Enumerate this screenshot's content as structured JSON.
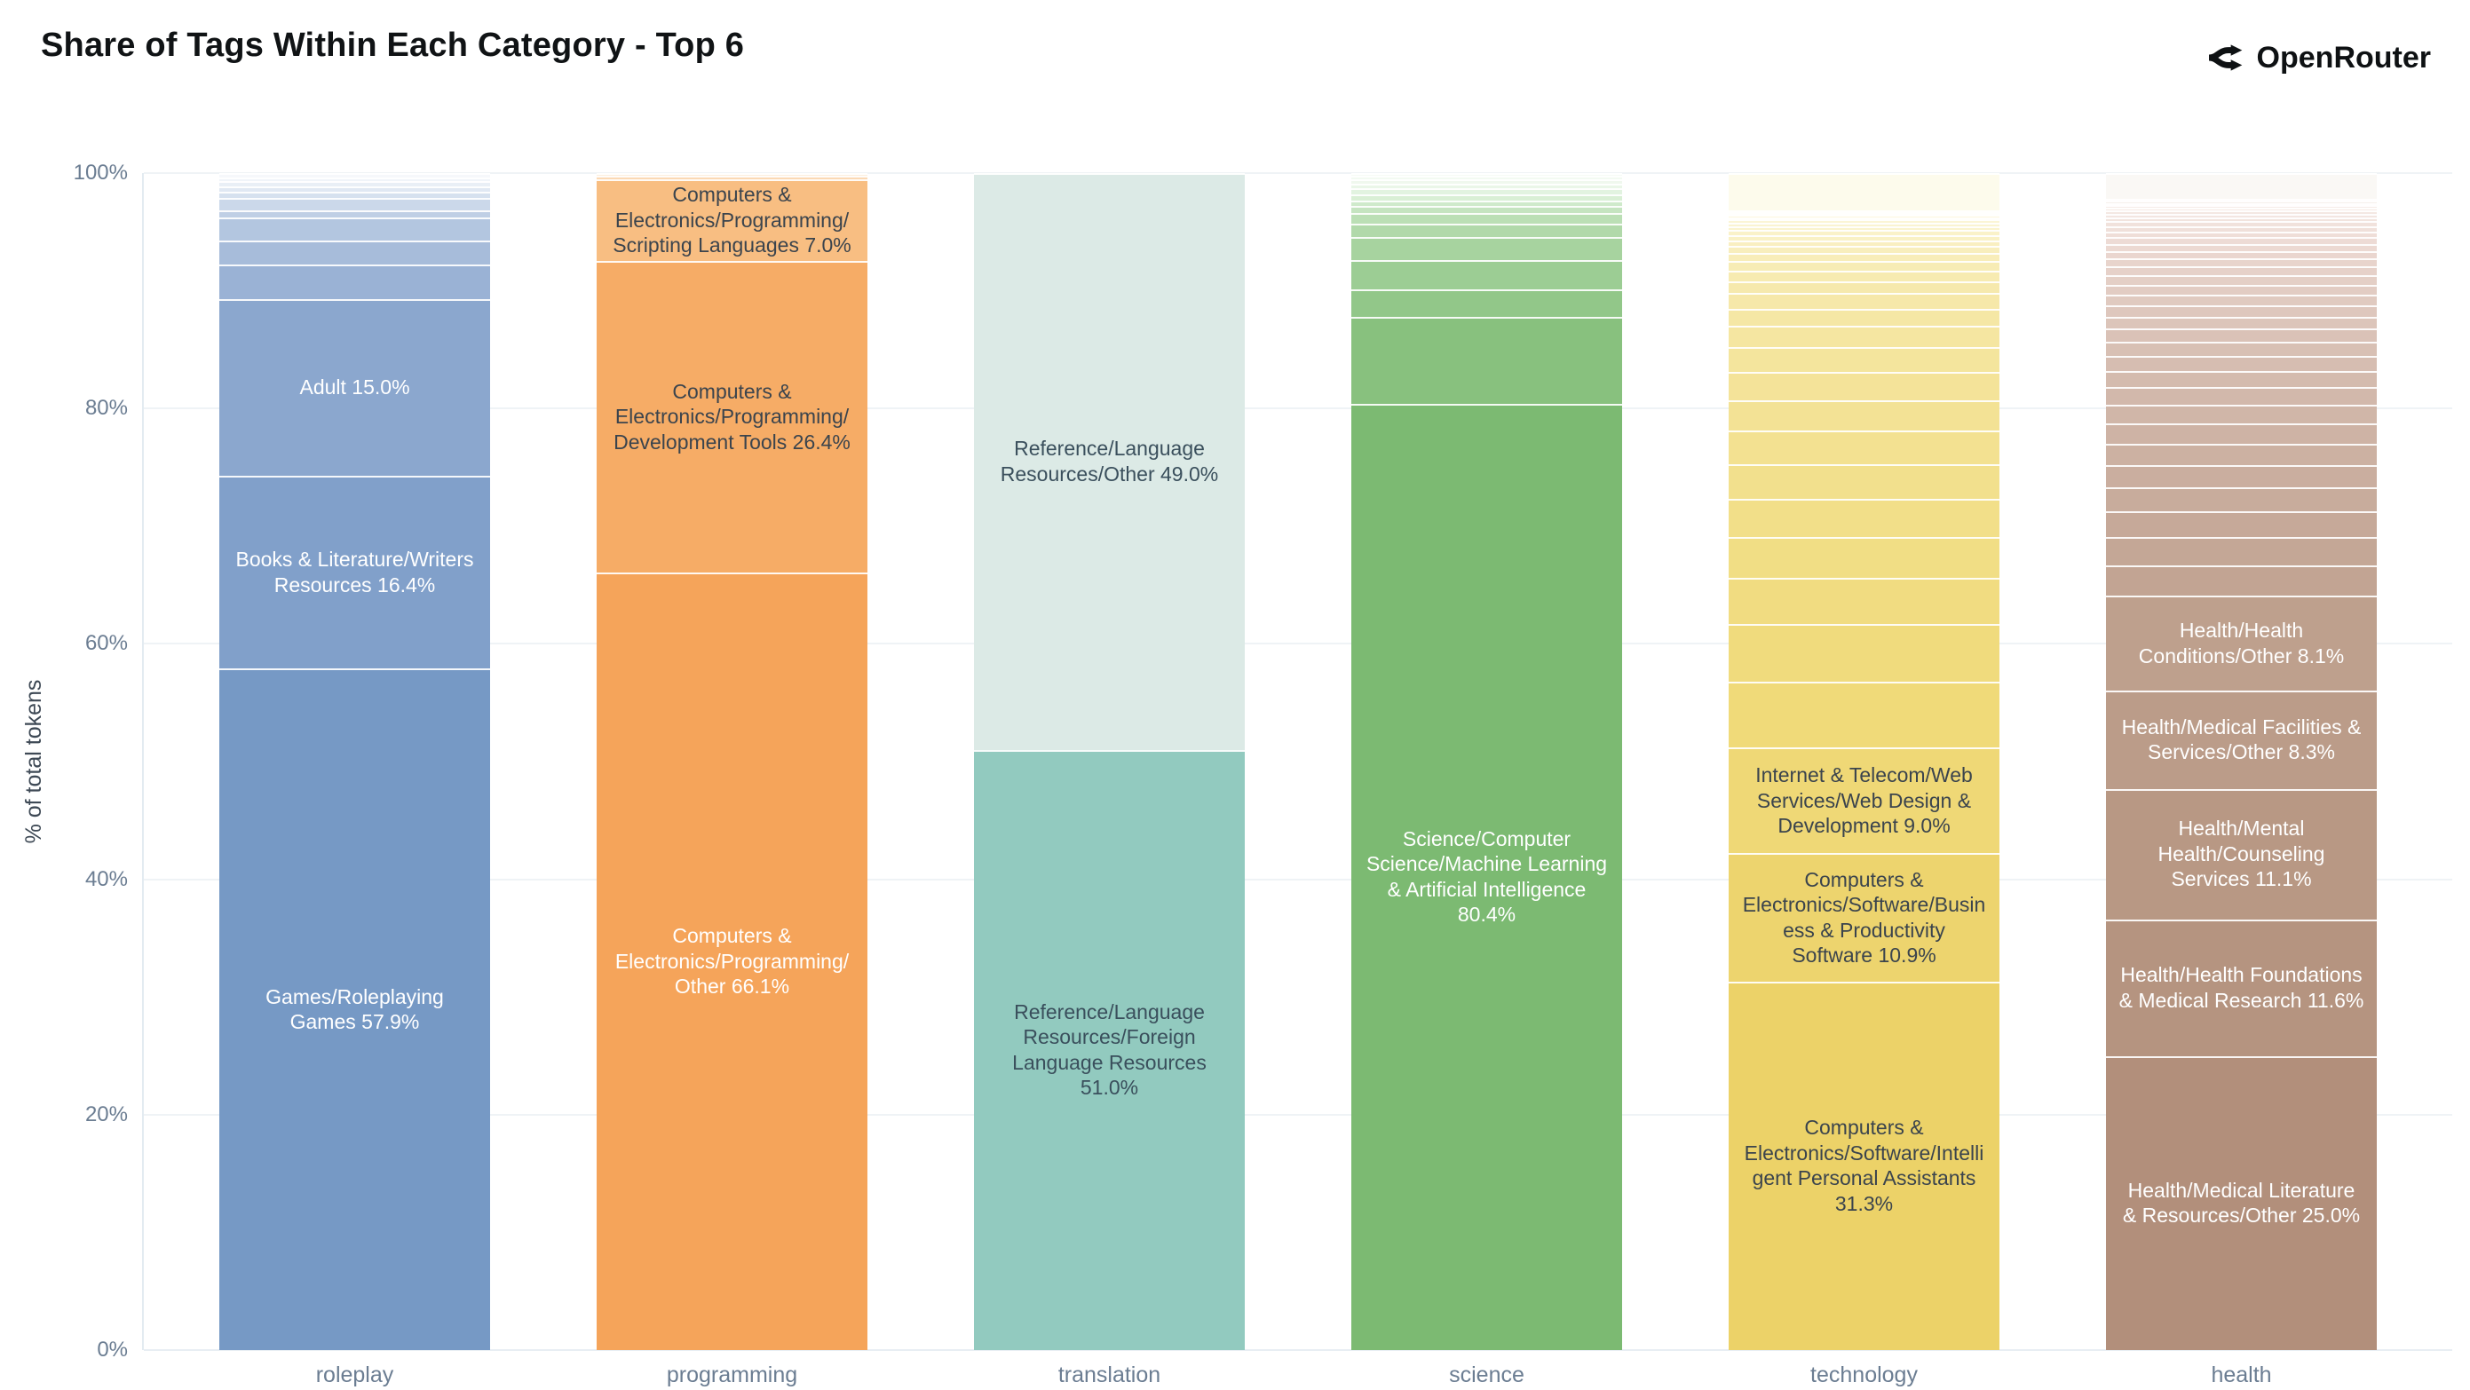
{
  "title": "Share of Tags Within Each Category - Top 6",
  "brand": {
    "name": "OpenRouter"
  },
  "y_axis": {
    "title": "% of total tokens",
    "ticks": [
      "0%",
      "20%",
      "40%",
      "60%",
      "80%",
      "100%"
    ]
  },
  "theme": {
    "background": "#FFFFFF",
    "gridline": "#EFF3F6",
    "axis_line": "#E3EBF1",
    "tick_text": "#6B7D92",
    "axis_title_text": "#3E4955",
    "title_text": "#101315",
    "brand_text": "#0E1113"
  },
  "chart_data": {
    "type": "bar",
    "stacked": true,
    "grid": true,
    "legend": "none",
    "title": "Share of Tags Within Each Category - Top 6",
    "xlabel": "",
    "ylabel": "% of total tokens",
    "ylim": [
      0,
      100
    ],
    "categories": [
      "roleplay",
      "programming",
      "translation",
      "science",
      "technology",
      "health"
    ],
    "bars": [
      {
        "category": "roleplay",
        "base_color": "#7699C5",
        "segments": [
          {
            "label": "Games/Roleplaying Games",
            "value": 57.9,
            "color": "#7699C5",
            "text": "#FFFFFF"
          },
          {
            "label": "Books & Literature/Writers Resources",
            "value": 16.4,
            "color": "#81A0CA",
            "text": "#FFFFFF"
          },
          {
            "label": "Adult",
            "value": 15.0,
            "color": "#8BA7CE",
            "text": "#FFFFFF"
          },
          {
            "label": null,
            "value": 2.9,
            "color": "#9AB2D5"
          },
          {
            "label": null,
            "value": 2.1,
            "color": "#A7BCDA"
          },
          {
            "label": null,
            "value": 1.9,
            "color": "#B3C6E0"
          },
          {
            "label": null,
            "value": 0.6,
            "color": "#BFCFE5"
          },
          {
            "label": null,
            "value": 1.1,
            "color": "#CBD8EA"
          },
          {
            "label": null,
            "value": 0.55,
            "color": "#D6E1EF"
          },
          {
            "label": null,
            "value": 0.45,
            "color": "#E0E8F3"
          },
          {
            "label": null,
            "value": 0.4,
            "color": "#E9EFF6"
          },
          {
            "label": null,
            "value": 0.35,
            "color": "#F0F4F9"
          },
          {
            "label": null,
            "value": 0.35,
            "color": "#F6F8FB"
          }
        ]
      },
      {
        "category": "programming",
        "base_color": "#F5A45A",
        "segments": [
          {
            "label": "Computers & Electronics/Programming/Other",
            "value": 66.1,
            "color": "#F5A45A",
            "text": "#FFFFFF"
          },
          {
            "label": "Computers & Electronics/Programming/Development Tools",
            "value": 26.4,
            "color": "#F6AC66",
            "text": "#3B444D"
          },
          {
            "label": "Computers & Electronics/Programming/Scripting Languages",
            "value": 7.0,
            "color": "#F8BE82",
            "text": "#3B444D"
          },
          {
            "label": null,
            "value": 0.3,
            "color": "#FBD9B4"
          },
          {
            "label": null,
            "value": 0.2,
            "color": "#FDEFDE"
          }
        ]
      },
      {
        "category": "translation",
        "base_color": "#92CABF",
        "segments": [
          {
            "label": "Reference/Language Resources/Foreign Language Resources",
            "value": 51.0,
            "color": "#92CABF",
            "text": "#3A4F5C"
          },
          {
            "label": "Reference/Language Resources/Other",
            "value": 49.0,
            "color": "#DCEAE6",
            "text": "#3A4F5C"
          }
        ]
      },
      {
        "category": "science",
        "base_color": "#7CBA72",
        "segments": [
          {
            "label": "Science/Computer Science/Machine Learning & Artificial Intelligence",
            "value": 80.4,
            "color": "#7CBA72",
            "text": "#FFFFFF"
          },
          {
            "label": null,
            "value": 7.4,
            "color": "#88C17E"
          },
          {
            "label": null,
            "value": 2.3,
            "color": "#92C789"
          },
          {
            "label": null,
            "value": 2.5,
            "color": "#9CCD94"
          },
          {
            "label": null,
            "value": 2.0,
            "color": "#A7D39F"
          },
          {
            "label": null,
            "value": 1.1,
            "color": "#B1D9AA"
          },
          {
            "label": null,
            "value": 0.9,
            "color": "#BBDFB5"
          },
          {
            "label": null,
            "value": 0.6,
            "color": "#C5E4C0"
          },
          {
            "label": null,
            "value": 0.5,
            "color": "#CFEACB"
          },
          {
            "label": null,
            "value": 0.5,
            "color": "#D9EFD5"
          },
          {
            "label": null,
            "value": 0.5,
            "color": "#E2F3E0"
          },
          {
            "label": null,
            "value": 0.4,
            "color": "#EAF6E8"
          },
          {
            "label": null,
            "value": 0.35,
            "color": "#F0F8EE"
          },
          {
            "label": null,
            "value": 0.3,
            "color": "#F3FAF2"
          },
          {
            "label": null,
            "value": 0.25,
            "color": "#F6FBF5"
          }
        ]
      },
      {
        "category": "technology",
        "base_color": "#ECD268",
        "segments": [
          {
            "label": "Computers & Electronics/Software/Intelligent Personal Assistants",
            "value": 31.3,
            "color": "#ECD268",
            "text": "#3B444D"
          },
          {
            "label": "Computers & Electronics/Software/Business & Productivity Software",
            "value": 10.9,
            "color": "#EDD46E",
            "text": "#3B444D"
          },
          {
            "label": "Internet & Telecom/Web Services/Web Design & Development",
            "value": 9.0,
            "color": "#EFD876",
            "text": "#3B444D"
          },
          {
            "label": null,
            "value": 5.6,
            "color": "#F0DA79"
          },
          {
            "label": null,
            "value": 4.9,
            "color": "#F0DB7D"
          },
          {
            "label": null,
            "value": 3.9,
            "color": "#F1DC81"
          },
          {
            "label": null,
            "value": 3.5,
            "color": "#F1DE85"
          },
          {
            "label": null,
            "value": 3.2,
            "color": "#F2DF89"
          },
          {
            "label": null,
            "value": 3.0,
            "color": "#F2E08D"
          },
          {
            "label": null,
            "value": 2.8,
            "color": "#F3E191"
          },
          {
            "label": null,
            "value": 2.6,
            "color": "#F3E295"
          },
          {
            "label": null,
            "value": 2.4,
            "color": "#F4E399"
          },
          {
            "label": null,
            "value": 2.1,
            "color": "#F4E59D"
          },
          {
            "label": null,
            "value": 1.8,
            "color": "#F5E6A1"
          },
          {
            "label": null,
            "value": 1.5,
            "color": "#F5E7A5"
          },
          {
            "label": null,
            "value": 1.3,
            "color": "#F6E8A9"
          },
          {
            "label": null,
            "value": 1.0,
            "color": "#F6E9AD"
          },
          {
            "label": null,
            "value": 0.9,
            "color": "#F7EBB1"
          },
          {
            "label": null,
            "value": 0.8,
            "color": "#F7ECB5"
          },
          {
            "label": null,
            "value": 0.7,
            "color": "#F8EDB9"
          },
          {
            "label": null,
            "value": 0.6,
            "color": "#F8EEBD"
          },
          {
            "label": null,
            "value": 0.5,
            "color": "#F9EFC1"
          },
          {
            "label": null,
            "value": 0.45,
            "color": "#F9F1C5"
          },
          {
            "label": null,
            "value": 0.4,
            "color": "#FAF2C9"
          },
          {
            "label": null,
            "value": 0.35,
            "color": "#FAF3CD"
          },
          {
            "label": null,
            "value": 0.3,
            "color": "#FAF4D1"
          },
          {
            "label": null,
            "value": 0.25,
            "color": "#FBF5D5"
          },
          {
            "label": null,
            "value": 0.2,
            "color": "#FBF6D9"
          },
          {
            "label": null,
            "value": 0.18,
            "color": "#FCF7DD"
          },
          {
            "label": null,
            "value": 0.15,
            "color": "#FCF8E1"
          },
          {
            "label": null,
            "value": 0.12,
            "color": "#FCF8E3"
          },
          {
            "label": null,
            "value": 0.1,
            "color": "#FDF9E5"
          },
          {
            "label": null,
            "value": 3.2,
            "color": "#FDFBEC"
          }
        ]
      },
      {
        "category": "health",
        "base_color": "#B28F7B",
        "segments": [
          {
            "label": "Health/Medical Literature & Resources/Other",
            "value": 25.0,
            "color": "#B28F7B",
            "text": "#FFFFFF"
          },
          {
            "label": "Health/Health Foundations & Medical Research",
            "value": 11.6,
            "color": "#B59480",
            "text": "#FFFFFF"
          },
          {
            "label": "Health/Mental Health/Counseling Services",
            "value": 11.1,
            "color": "#B89884",
            "text": "#FFFFFF"
          },
          {
            "label": "Health/Medical Facilities & Services/Other",
            "value": 8.3,
            "color": "#BB9C89",
            "text": "#FFFFFF"
          },
          {
            "label": "Health/Health Conditions/Other",
            "value": 8.1,
            "color": "#BEA08D",
            "text": "#FFFFFF"
          },
          {
            "label": null,
            "value": 2.6,
            "color": "#C2A493"
          },
          {
            "label": null,
            "value": 2.4,
            "color": "#C4A796"
          },
          {
            "label": null,
            "value": 2.2,
            "color": "#C6A999"
          },
          {
            "label": null,
            "value": 2.0,
            "color": "#C8AC9C"
          },
          {
            "label": null,
            "value": 1.9,
            "color": "#CAAE9F"
          },
          {
            "label": null,
            "value": 1.8,
            "color": "#CCB1A2"
          },
          {
            "label": null,
            "value": 1.7,
            "color": "#CEB3A5"
          },
          {
            "label": null,
            "value": 1.6,
            "color": "#D0B6A8"
          },
          {
            "label": null,
            "value": 1.5,
            "color": "#D2B8AB"
          },
          {
            "label": null,
            "value": 1.4,
            "color": "#D4BBAE"
          },
          {
            "label": null,
            "value": 1.3,
            "color": "#D6BDB1"
          },
          {
            "label": null,
            "value": 1.2,
            "color": "#D8C0B4"
          },
          {
            "label": null,
            "value": 1.1,
            "color": "#DAC2B7"
          },
          {
            "label": null,
            "value": 1.0,
            "color": "#DCC5BA"
          },
          {
            "label": null,
            "value": 0.95,
            "color": "#DEC7BD"
          },
          {
            "label": null,
            "value": 0.9,
            "color": "#E0CAC0"
          },
          {
            "label": null,
            "value": 0.85,
            "color": "#E2CCC3"
          },
          {
            "label": null,
            "value": 0.8,
            "color": "#E4CFC6"
          },
          {
            "label": null,
            "value": 0.75,
            "color": "#E6D1C9"
          },
          {
            "label": null,
            "value": 0.7,
            "color": "#E8D4CC"
          },
          {
            "label": null,
            "value": 0.65,
            "color": "#EAD6CF"
          },
          {
            "label": null,
            "value": 0.6,
            "color": "#ECD9D2"
          },
          {
            "label": null,
            "value": 0.55,
            "color": "#EDDBD5"
          },
          {
            "label": null,
            "value": 0.5,
            "color": "#EFDED8"
          },
          {
            "label": null,
            "value": 0.45,
            "color": "#F0E0DA"
          },
          {
            "label": null,
            "value": 0.4,
            "color": "#F1E2DC"
          },
          {
            "label": null,
            "value": 0.35,
            "color": "#F2E4DE"
          },
          {
            "label": null,
            "value": 0.3,
            "color": "#F3E6E1"
          },
          {
            "label": null,
            "value": 0.25,
            "color": "#F4E8E3"
          },
          {
            "label": null,
            "value": 0.25,
            "color": "#F5EAE5"
          },
          {
            "label": null,
            "value": 0.22,
            "color": "#F5ECE8"
          },
          {
            "label": null,
            "value": 0.2,
            "color": "#F6EEEA"
          },
          {
            "label": null,
            "value": 0.18,
            "color": "#F6F0EC"
          },
          {
            "label": null,
            "value": 0.15,
            "color": "#F7F2EE"
          },
          {
            "label": null,
            "value": 2.2,
            "color": "#FAF8F5"
          }
        ]
      }
    ]
  }
}
